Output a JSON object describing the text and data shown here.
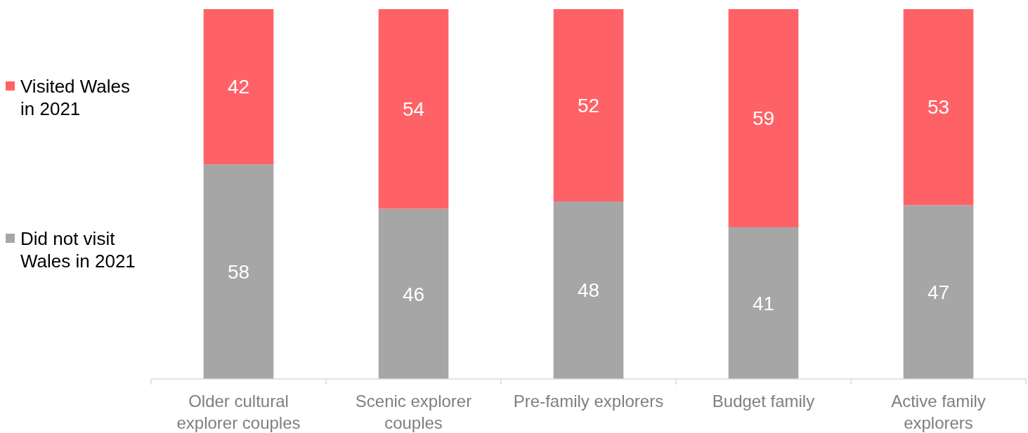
{
  "chart_data": {
    "type": "bar",
    "stacked": true,
    "categories": [
      "Older cultural explorer couples",
      "Scenic explorer couples",
      "Pre-family explorers",
      "Budget family",
      "Active family explorers"
    ],
    "series": [
      {
        "name": "Did not visit Wales in 2021",
        "color": "#a6a6a6",
        "values": [
          58,
          46,
          48,
          41,
          47
        ]
      },
      {
        "name": "Visited Wales in 2021",
        "color": "#ff6266",
        "values": [
          42,
          54,
          52,
          59,
          53
        ]
      }
    ],
    "data_labels": true,
    "legend": "left"
  }
}
